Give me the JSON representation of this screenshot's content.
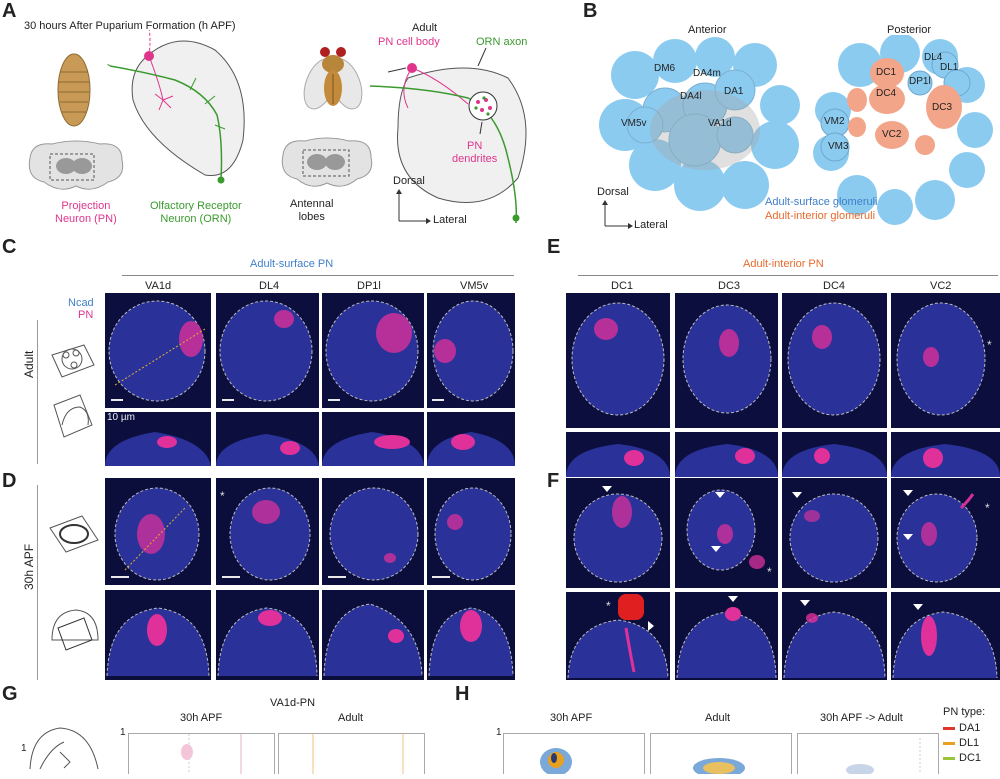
{
  "panels": {
    "A": {
      "letter": "A",
      "stage_title": "30 hours After Puparium Formation (h APF)",
      "pn_label": "Projection\nNeuron (PN)",
      "orn_label": "Olfactory Receptor\nNeuron (ORN)",
      "adult_title": "Adult",
      "pn_cell_body": "PN cell body",
      "orn_axon": "ORN axon",
      "pn_dendrites": "PN\ndendrites",
      "antennal_lobes": "Antennal\nlobes",
      "dorsal": "Dorsal",
      "lateral": "Lateral"
    },
    "B": {
      "letter": "B",
      "anterior": "Anterior",
      "posterior": "Posterior",
      "anterior_glomeruli": [
        "DM6",
        "DA4m",
        "DA4l",
        "DA1",
        "VM5v",
        "VA1d"
      ],
      "posterior_glomeruli": [
        "DL4",
        "DL1",
        "DC1",
        "DP1l",
        "DC4",
        "DC3",
        "VM2",
        "VC2",
        "VM3"
      ],
      "legend_surface": "Adult-surface glomeruli",
      "legend_interior": "Adult-interior glomeruli",
      "dorsal": "Dorsal",
      "lateral": "Lateral",
      "colors": {
        "surface": "#8ccbf0",
        "interior": "#f3a58a"
      }
    },
    "C": {
      "letter": "C",
      "header": "Adult-surface PN",
      "columns": [
        "VA1d",
        "DL4",
        "DP1l",
        "VM5v"
      ],
      "legend_ncad": "Ncad",
      "legend_pn": "PN",
      "row_label": "Adult",
      "scale": "10 µm"
    },
    "D": {
      "letter": "D",
      "row_label": "30h APF"
    },
    "E": {
      "letter": "E",
      "header": "Adult-interior PN",
      "columns": [
        "DC1",
        "DC3",
        "DC4",
        "VC2"
      ]
    },
    "F": {
      "letter": "F"
    },
    "G": {
      "letter": "G",
      "title": "VA1d-PN",
      "col1": "30h APF",
      "col2": "Adult",
      "ytick": "1",
      "ytick_side": "1"
    },
    "H": {
      "letter": "H",
      "col1": "30h APF",
      "col2": "Adult",
      "col3": "30h APF -> Adult",
      "ytick": "1",
      "legend_title": "PN type:",
      "legend": [
        {
          "name": "DA1",
          "color": "#e0352a"
        },
        {
          "name": "DL1",
          "color": "#e8a020"
        },
        {
          "name": "DC1",
          "color": "#9ac43a"
        }
      ]
    }
  }
}
